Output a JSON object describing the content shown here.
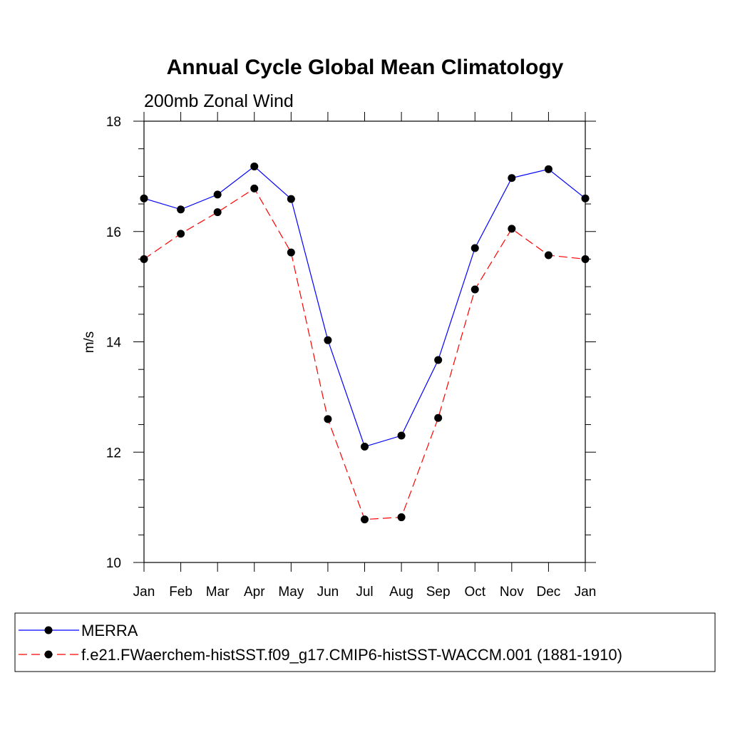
{
  "chart_data": {
    "type": "line",
    "title": "Annual Cycle Global Mean Climatology",
    "subtitle": "200mb Zonal Wind",
    "xlabel": "",
    "ylabel": "m/s",
    "categories": [
      "Jan",
      "Feb",
      "Mar",
      "Apr",
      "May",
      "Jun",
      "Jul",
      "Aug",
      "Sep",
      "Oct",
      "Nov",
      "Dec",
      "Jan"
    ],
    "ylim": [
      10,
      18
    ],
    "yticks": [
      10,
      12,
      14,
      16,
      18
    ],
    "grid": false,
    "legend_position": "bottom",
    "series": [
      {
        "name": "MERRA",
        "color": "#0000ff",
        "dash": "solid",
        "marker_color": "#000000",
        "values": [
          16.6,
          16.4,
          16.67,
          17.18,
          16.59,
          14.03,
          12.1,
          12.3,
          13.67,
          15.7,
          16.97,
          17.13,
          16.6
        ]
      },
      {
        "name": "f.e21.FWaerchem-histSST.f09_g17.CMIP6-histSST-WACCM.001 (1881-1910)",
        "color": "#ff0000",
        "dash": "dashed",
        "marker_color": "#000000",
        "values": [
          15.5,
          15.96,
          16.35,
          16.78,
          15.62,
          12.6,
          10.78,
          10.82,
          12.62,
          14.95,
          16.05,
          15.57,
          15.5
        ]
      }
    ]
  }
}
